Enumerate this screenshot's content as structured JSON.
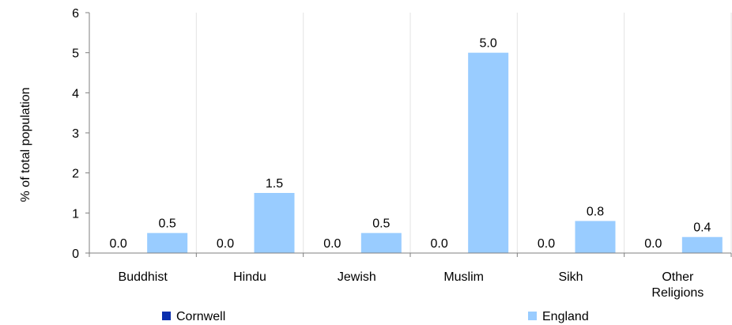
{
  "chart_data": {
    "type": "bar",
    "categories": [
      [
        "Buddhist"
      ],
      [
        "Hindu"
      ],
      [
        "Jewish"
      ],
      [
        "Muslim"
      ],
      [
        "Sikh"
      ],
      [
        "Other",
        "Religions"
      ]
    ],
    "series": [
      {
        "name": "Cornwell",
        "color": "#0a2fae",
        "values": [
          0.0,
          0.0,
          0.0,
          0.0,
          0.0,
          0.0
        ],
        "labels": [
          "0.0",
          "0.0",
          "0.0",
          "0.0",
          "0.0",
          "0.0"
        ]
      },
      {
        "name": "England",
        "color": "#99ccff",
        "values": [
          0.5,
          1.5,
          0.5,
          5.0,
          0.8,
          0.4
        ],
        "labels": [
          "0.5",
          "1.5",
          "0.5",
          "5.0",
          "0.8",
          "0.4"
        ]
      }
    ],
    "title": "",
    "xlabel": "",
    "ylabel": "% of total population",
    "ylim": [
      0,
      6
    ],
    "yticks": [
      "0",
      "1",
      "2",
      "3",
      "4",
      "5",
      "6"
    ],
    "grid": "vertical",
    "legend_position": "bottom"
  }
}
